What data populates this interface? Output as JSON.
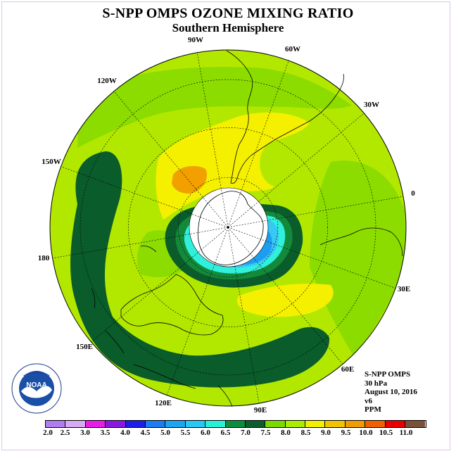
{
  "title": "S-NPP OMPS OZONE MIXING RATIO",
  "subtitle": "Southern Hemisphere",
  "longitude_labels": [
    "90W",
    "60W",
    "30W",
    "0",
    "30E",
    "60E",
    "90E",
    "120E",
    "150E",
    "180",
    "150W",
    "120W"
  ],
  "info": {
    "instrument": "S-NPP OMPS",
    "level": "30 hPa",
    "date": "August 10, 2016",
    "version": "v6",
    "units": "PPM"
  },
  "legend": {
    "labels": [
      "2.0",
      "2.5",
      "3.0",
      "3.5",
      "4.0",
      "4.5",
      "5.0",
      "5.5",
      "6.0",
      "6.5",
      "7.0",
      "7.5",
      "8.0",
      "8.5",
      "9.0",
      "9.5",
      "10.0",
      "10.5",
      "11.0"
    ],
    "colors": [
      "#b07cf0",
      "#d8a8f0",
      "#e81ce8",
      "#8a18e0",
      "#1e1ee8",
      "#1c7cf0",
      "#1ca4f0",
      "#28c8f4",
      "#28f0d8",
      "#0c8c3c",
      "#0c5c2c",
      "#7cd800",
      "#a8ec00",
      "#f0f000",
      "#f0c400",
      "#f09c00",
      "#f06000",
      "#e80000",
      "#7a5038"
    ]
  },
  "map_colors": {
    "base": "#b2e800",
    "high": "#f4f000",
    "peak": "#f2a000",
    "mid_green": "#8cdc00",
    "dark": "#0a5c2a",
    "mid_dark": "#138a3a",
    "cyan": "#30f0dc",
    "sky": "#38c8f4",
    "blue": "#1c9ef0",
    "hole": "#ffffff"
  },
  "logo_text": "NOAA"
}
